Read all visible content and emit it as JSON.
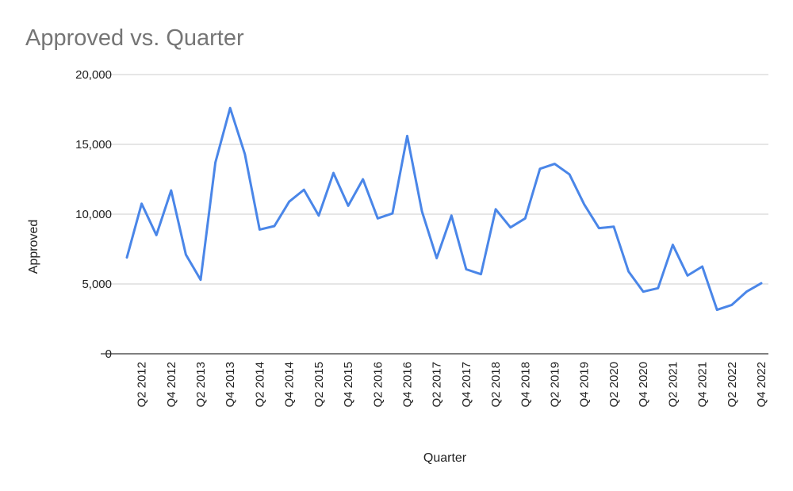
{
  "chart_data": {
    "type": "line",
    "title": "Approved  vs. Quarter",
    "xlabel": "Quarter",
    "ylabel": "Approved",
    "ylim": [
      0,
      20000
    ],
    "yticks": [
      0,
      5000,
      10000,
      15000,
      20000
    ],
    "ytick_labels": [
      "0",
      "5,000",
      "10,000",
      "15,000",
      "20,000"
    ],
    "grid": true,
    "legend": "none",
    "series_color": "#4a86e8",
    "categories": [
      "Q1 2012",
      "Q2 2012",
      "Q3 2012",
      "Q4 2012",
      "Q1 2013",
      "Q2 2013",
      "Q3 2013",
      "Q4 2013",
      "Q1 2014",
      "Q2 2014",
      "Q3 2014",
      "Q4 2014",
      "Q1 2015",
      "Q2 2015",
      "Q3 2015",
      "Q4 2015",
      "Q1 2016",
      "Q2 2016",
      "Q3 2016",
      "Q4 2016",
      "Q1 2017",
      "Q2 2017",
      "Q3 2017",
      "Q4 2017",
      "Q1 2018",
      "Q2 2018",
      "Q3 2018",
      "Q4 2018",
      "Q1 2019",
      "Q2 2019",
      "Q3 2019",
      "Q4 2019",
      "Q1 2020",
      "Q2 2020",
      "Q3 2020",
      "Q4 2020",
      "Q1 2021",
      "Q2 2021",
      "Q3 2021",
      "Q4 2021",
      "Q1 2022",
      "Q2 2022",
      "Q3 2022",
      "Q4 2022"
    ],
    "tick_labels": [
      "Q2 2012",
      "Q4 2012",
      "Q2 2013",
      "Q4 2013",
      "Q2 2014",
      "Q4 2014",
      "Q2 2015",
      "Q4 2015",
      "Q2 2016",
      "Q4 2016",
      "Q2 2017",
      "Q4 2017",
      "Q2 2018",
      "Q4 2018",
      "Q2 2019",
      "Q4 2019",
      "Q2 2020",
      "Q4 2020",
      "Q2 2021",
      "Q4 2021",
      "Q2 2022",
      "Q4 2022"
    ],
    "series": [
      {
        "values": [
          6900,
          10750,
          8500,
          11700,
          7100,
          5300,
          13700,
          17600,
          14300,
          8900,
          9150,
          10900,
          11750,
          9900,
          12950,
          10600,
          12500,
          9700,
          10050,
          15600,
          10200,
          6850,
          9900,
          6050,
          5700,
          10350,
          9050,
          9700,
          13250,
          13600,
          12850,
          10700,
          9000,
          9100,
          5900,
          4450,
          4700,
          7800,
          5600,
          6250,
          3150,
          3500,
          4450,
          5050
        ]
      }
    ]
  }
}
